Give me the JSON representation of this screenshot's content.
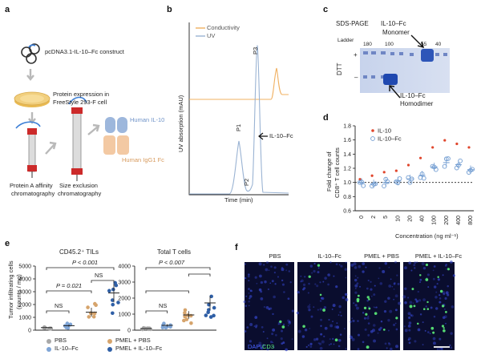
{
  "panel_a": {
    "letter": "a",
    "construct": "pcDNA3.1-IL-10–Fc construct",
    "expression_line1": "Protein expression in",
    "expression_line2": "FreeStyle 293-F cell",
    "human_il10": "Human IL-10",
    "human_igg1": "Human IgG1 Fc",
    "protein_a_line1": "Protein A affinity",
    "protein_a_line2": "chromatography",
    "size_excl_line1": "Size exclusion",
    "size_excl_line2": "chromatography",
    "colors": {
      "il10": "#9db7dc",
      "fc": "#f3c9a3",
      "column": "#cc2a2a",
      "dish": "#f1cf7e",
      "arrow": "#b9b9b9"
    }
  },
  "panel_b": {
    "letter": "b",
    "legend_conductivity": "Conductivity",
    "legend_uv": "UV",
    "ylabel": "UV absorption (mAU)",
    "xlabel": "Time (min)",
    "peak_p1": "P1",
    "peak_p2": "P2",
    "peak_p3": "P3",
    "arrow_label": "IL-10–Fc",
    "colors": {
      "uv": "#9ab3d3",
      "conductivity": "#f0b061"
    }
  },
  "panel_c": {
    "letter": "c",
    "title": "SDS-PAGE",
    "monomer_line1": "IL-10–Fc",
    "monomer_line2": "Monomer",
    "homodimer_line1": "IL-10–Fc",
    "homodimer_line2": "Homodimer",
    "ladder": "Ladder",
    "ladder_marks": [
      "180",
      "100",
      "55",
      "40"
    ],
    "dtt": "DTT",
    "plus": "+",
    "minus": "–"
  },
  "panel_d": {
    "letter": "d",
    "legend_il10": "IL-10",
    "legend_fc": "IL-10–Fc",
    "ylabel_line1": "Fold change of",
    "ylabel_line2": "CD8⁺ T cell counts",
    "xlabel": "Concentration (ng ml⁻¹)",
    "colors": {
      "il10": "#e0462c",
      "fc": "#6f9bd1"
    },
    "chart_data": {
      "type": "scatter",
      "categories": [
        "0",
        "2",
        "5",
        "10",
        "20",
        "40",
        "100",
        "200",
        "400",
        "800"
      ],
      "ylim": [
        0.6,
        1.8
      ],
      "yticks": [
        "0.6",
        "0.8",
        "1.0",
        "1.2",
        "1.4",
        "1.6",
        "1.8"
      ],
      "reference_line": 1.0,
      "series": [
        {
          "name": "IL-10",
          "values": [
            1.0,
            1.05,
            1.1,
            1.12,
            1.2,
            1.3,
            1.45,
            1.55,
            1.5,
            1.45
          ]
        },
        {
          "name": "IL-10–Fc",
          "values": [
            1.0,
            0.98,
            1.0,
            1.02,
            1.05,
            1.1,
            1.22,
            1.28,
            1.25,
            1.18
          ]
        }
      ]
    }
  },
  "panel_e": {
    "letter": "e",
    "title_left": "CD45.2⁺ TILs",
    "title_right": "Total T cells",
    "ylabel_line1": "Tumor infiltrating cells",
    "ylabel_line2": "(counts / mg)",
    "p_left_top": "P < 0.001",
    "p_left_mid": "P = 0.021",
    "ns": "NS",
    "p_right_top": "P < 0.007",
    "legend": [
      "PBS",
      "IL-10–Fc",
      "PMEL + PBS",
      "PMEL + IL-10–Fc"
    ],
    "colors": [
      "#a8a8a8",
      "#7fa5d6",
      "#d6a46c",
      "#2f5fa6"
    ],
    "chart_data": [
      {
        "type": "scatter",
        "title": "CD45.2⁺ TILs",
        "categories": [
          "PBS",
          "IL-10–Fc",
          "PMEL + PBS",
          "PMEL + IL-10–Fc"
        ],
        "ylim": [
          0,
          5000
        ],
        "yticks": [
          "0",
          "1000",
          "2000",
          "3000",
          "4000",
          "5000"
        ],
        "means": [
          200,
          350,
          1400,
          2900
        ]
      },
      {
        "type": "scatter",
        "title": "Total T cells",
        "categories": [
          "PBS",
          "IL-10–Fc",
          "PMEL + PBS",
          "PMEL + IL-10–Fc"
        ],
        "ylim": [
          0,
          4000
        ],
        "yticks": [
          "0",
          "1000",
          "2000",
          "3000",
          "4000"
        ],
        "means": [
          100,
          300,
          950,
          1700
        ]
      }
    ]
  },
  "panel_f": {
    "letter": "f",
    "titles": [
      "PBS",
      "IL-10–Fc",
      "PMEL + PBS",
      "PMEL + IL-10–Fc"
    ],
    "dapi": "DAPI",
    "cd3": "CD3",
    "colors": {
      "bg": "#0a0d2e",
      "dapi": "#3444c8",
      "cd3": "#5cf07a"
    }
  }
}
